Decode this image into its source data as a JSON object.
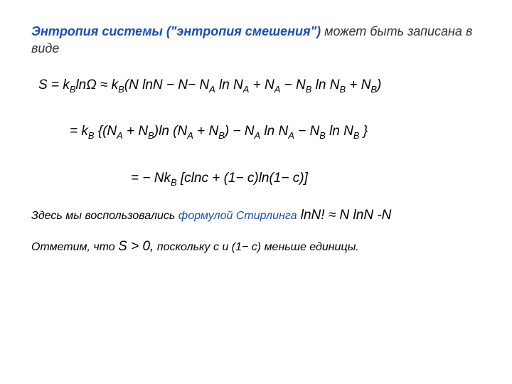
{
  "colors": {
    "accent": "#1a4fb5",
    "text": "#000000",
    "background": "#ffffff"
  },
  "typography": {
    "base_fontsize_pt": 14,
    "formula_fontsize_pt": 15,
    "family": "Arial",
    "style": "italic"
  },
  "intro": {
    "highlight": "Энтропия системы (\"энтропия смешения\")",
    "rest": " может быть записана в виде"
  },
  "eq1": {
    "pre": "S = k",
    "sub1": "B",
    "mid1": "lnΩ ≈  k",
    "sub2": "B",
    "mid2": "(N lnN −  N− N",
    "sub3": "A",
    "mid3": " ln N",
    "sub4": "A",
    "mid4": " + N",
    "sub5": "A",
    "mid5": " − N",
    "sub6": "B",
    "mid6": " ln N",
    "sub7": "B",
    "mid7": " + N",
    "sub8": "B",
    "end": ")"
  },
  "eq2": {
    "pre": "= k",
    "sub1": "B",
    "mid1": " {(N",
    "sub2": "A",
    "mid2": " + N",
    "sub3": "B",
    "mid3": ")ln (N",
    "sub4": "A",
    "mid4": " + N",
    "sub5": "B",
    "mid5": ") − N",
    "sub6": "A",
    "mid6": " ln N",
    "sub7": "A",
    "mid7": " − N",
    "sub8": "B",
    "mid8": " ln N",
    "sub9": "B",
    "end": " }"
  },
  "eq3": {
    "pre": "= − Nk",
    "sub1": "B",
    "end": " [clnc + (1−  c)ln(1−  c)]"
  },
  "note": {
    "plain": "Здесь  мы воспользовались ",
    "blue": "формулой Стирлинга",
    "formula": "  lnN! ≈  N lnN -N"
  },
  "final": {
    "p1": "Отметим, что ",
    "big": "S > 0,",
    "p2": " поскольку ",
    "p3": "c и (1− c) меньше единицы."
  }
}
